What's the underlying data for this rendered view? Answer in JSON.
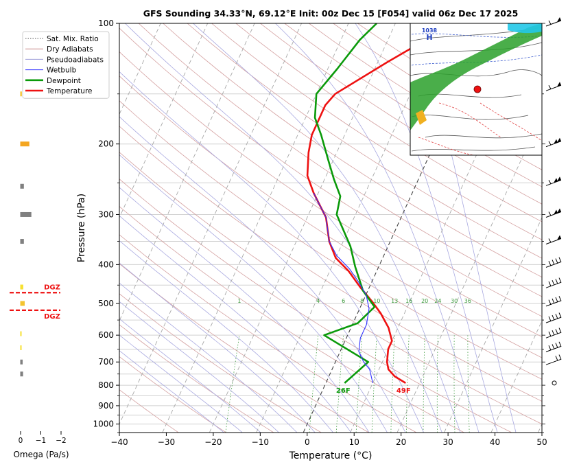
{
  "chart_data": {
    "type": "line",
    "title": "GFS Sounding 34.33°N, 69.12°E Init: 00z Dec 15 [F054] valid 06z Dec 17 2025",
    "xlabel": "Temperature (°C)",
    "ylabel": "Pressure (hPa)",
    "x_ticks": [
      "−40",
      "−30",
      "−20",
      "−10",
      "0",
      "10",
      "20",
      "30",
      "40",
      "50"
    ],
    "x_tick_values": [
      -40,
      -30,
      -20,
      -10,
      0,
      10,
      20,
      30,
      40,
      50
    ],
    "y_ticks": [
      "100",
      "200",
      "300",
      "400",
      "500",
      "600",
      "700",
      "800",
      "900",
      "1000"
    ],
    "y_tick_values": [
      100,
      200,
      300,
      400,
      500,
      600,
      700,
      800,
      900,
      1000
    ],
    "xlim": [
      -40,
      50
    ],
    "ylim": [
      1050,
      100
    ],
    "y_scale": "log",
    "grid": true,
    "legend": {
      "position": "top-left",
      "entries": [
        {
          "label": "Sat. Mix. Ratio",
          "color": "#555555",
          "style": "dotted"
        },
        {
          "label": "Dry Adiabats",
          "color": "#c98a8a",
          "style": "solid"
        },
        {
          "label": "Pseudoadiabats",
          "color": "#9b9bd8",
          "style": "solid"
        },
        {
          "label": "Wetbulb",
          "color": "#3030ff",
          "style": "solid"
        },
        {
          "label": "Dewpoint",
          "color": "#0a9a0a",
          "style": "solid"
        },
        {
          "label": "Temperature",
          "color": "#ee1111",
          "style": "solid"
        }
      ]
    },
    "series": [
      {
        "name": "Temperature",
        "color": "#ee1111",
        "points": [
          [
            17,
            790
          ],
          [
            14,
            760
          ],
          [
            12,
            730
          ],
          [
            11,
            700
          ],
          [
            10,
            650
          ],
          [
            10,
            620
          ],
          [
            8,
            575
          ],
          [
            5,
            530
          ],
          [
            2,
            495
          ],
          [
            -2,
            455
          ],
          [
            -6,
            415
          ],
          [
            -10,
            385
          ],
          [
            -13,
            350
          ],
          [
            -16,
            305
          ],
          [
            -21,
            265
          ],
          [
            -24,
            240
          ],
          [
            -26,
            210
          ],
          [
            -27,
            190
          ],
          [
            -27,
            160
          ],
          [
            -26,
            150
          ],
          [
            -18,
            125
          ],
          [
            -12,
            110
          ],
          [
            -7,
            100
          ]
        ]
      },
      {
        "name": "Dewpoint",
        "color": "#0a9a0a",
        "points": [
          [
            4,
            790
          ],
          [
            7,
            700
          ],
          [
            -5,
            600
          ],
          [
            1,
            560
          ],
          [
            3,
            510
          ],
          [
            -1,
            465
          ],
          [
            -5,
            405
          ],
          [
            -8,
            360
          ],
          [
            -14,
            300
          ],
          [
            -15,
            270
          ],
          [
            -18,
            245
          ],
          [
            -21,
            220
          ],
          [
            -25,
            190
          ],
          [
            -28,
            172
          ],
          [
            -30,
            150
          ],
          [
            -28,
            130
          ],
          [
            -26,
            110
          ],
          [
            -24,
            100
          ]
        ]
      },
      {
        "name": "Wetbulb",
        "color": "#3030ff",
        "points": [
          [
            10,
            790
          ],
          [
            8,
            730
          ],
          [
            6,
            700
          ],
          [
            4,
            660
          ],
          [
            3,
            610
          ],
          [
            3,
            565
          ],
          [
            2,
            515
          ],
          [
            0,
            475
          ],
          [
            -3,
            440
          ],
          [
            -6,
            410
          ],
          [
            -10,
            380
          ],
          [
            -13,
            350
          ],
          [
            -16,
            305
          ],
          [
            -21,
            265
          ]
        ]
      }
    ],
    "sat_mix_ratio_labels": [
      "1",
      "4",
      "6",
      "8",
      "10",
      "13",
      "16",
      "20",
      "24",
      "30",
      "36"
    ],
    "sat_mix_ratio_values": [
      1,
      4,
      6,
      8,
      10,
      13,
      16,
      20,
      24,
      30,
      36
    ],
    "surface_labels": {
      "dewpoint": "26F",
      "temperature": "49F"
    },
    "dgz_label": "DGZ",
    "dgz_levels_hpa": [
      470,
      520
    ],
    "omega": {
      "xlabel": "Omega (Pa/s)",
      "ticks": [
        "0",
        "−1",
        "−2"
      ],
      "tick_values": [
        0,
        -1,
        -2
      ],
      "bars": [
        {
          "p": 150,
          "value": -0.08,
          "color": "#f4c430"
        },
        {
          "p": 200,
          "value": -0.45,
          "color": "#f4a620"
        },
        {
          "p": 255,
          "value": -0.18,
          "color": "#808080"
        },
        {
          "p": 300,
          "value": -0.55,
          "color": "#808080"
        },
        {
          "p": 350,
          "value": -0.18,
          "color": "#808080"
        },
        {
          "p": 455,
          "value": -0.15,
          "color": "#f7e030"
        },
        {
          "p": 500,
          "value": -0.22,
          "color": "#f4c430"
        },
        {
          "p": 595,
          "value": -0.03,
          "color": "#f7e030"
        },
        {
          "p": 645,
          "value": -0.02,
          "color": "#f7e030"
        },
        {
          "p": 700,
          "value": -0.12,
          "color": "#808080"
        },
        {
          "p": 750,
          "value": -0.14,
          "color": "#808080"
        }
      ]
    },
    "winds": [
      {
        "p": 100,
        "kind": "flag1"
      },
      {
        "p": 145,
        "kind": "flag1"
      },
      {
        "p": 200,
        "kind": "flag2"
      },
      {
        "p": 250,
        "kind": "flag2"
      },
      {
        "p": 300,
        "kind": "flag2"
      },
      {
        "p": 350,
        "kind": "flag1"
      },
      {
        "p": 400,
        "kind": "barbs"
      },
      {
        "p": 450,
        "kind": "barbs"
      },
      {
        "p": 500,
        "kind": "barbs"
      },
      {
        "p": 550,
        "kind": "barbs"
      },
      {
        "p": 600,
        "kind": "barbs"
      },
      {
        "p": 650,
        "kind": "barbs"
      },
      {
        "p": 700,
        "kind": "few"
      },
      {
        "p": 790,
        "kind": "calm"
      }
    ],
    "inset_map": {
      "label": "1038",
      "marker": "red-dot"
    }
  }
}
